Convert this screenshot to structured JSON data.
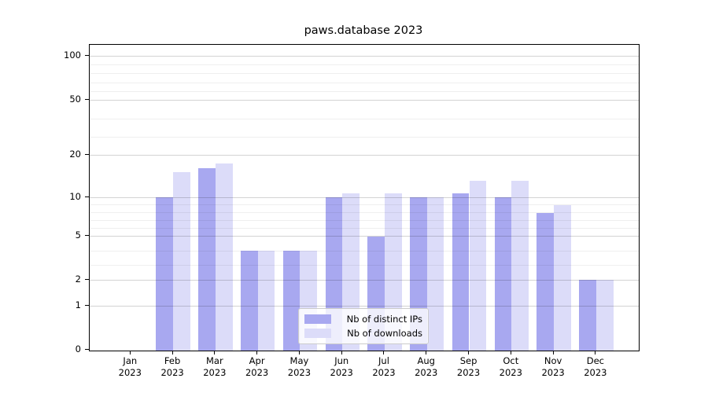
{
  "title": "paws.database 2023",
  "colors": {
    "distinct_ips_bar": "#a8a8f0",
    "downloads_bar": "#dcdcf9",
    "major_gridline": "#d3d3d3",
    "minor_gridline": "#efefef",
    "axis_spine": "#000000",
    "text": "#000000",
    "legend_border": "#cccccc"
  },
  "chart_data": {
    "type": "bar",
    "title": "paws.database 2023",
    "x_categories": [
      "Jan 2023",
      "Feb 2023",
      "Mar 2023",
      "Apr 2023",
      "May 2023",
      "Jun 2023",
      "Jul 2023",
      "Aug 2023",
      "Sep 2023",
      "Oct 2023",
      "Nov 2023",
      "Dec 2023"
    ],
    "series": [
      {
        "name": "Nb of distinct IPs",
        "color": "#a8a8f0",
        "values": [
          0,
          10,
          17,
          4,
          4,
          10,
          5,
          10,
          11,
          10,
          8,
          2
        ]
      },
      {
        "name": "Nb of downloads",
        "color": "#dcdcf9",
        "values": [
          0,
          16,
          18,
          4,
          4,
          11,
          11,
          10,
          14,
          14,
          9,
          2
        ]
      }
    ],
    "xlabel": "",
    "ylabel": "",
    "y_axis": {
      "scale": "log-like",
      "tick_labels": [
        "0",
        "1",
        "2",
        "5",
        "10",
        "20",
        "50",
        "100"
      ],
      "tick_values": [
        0,
        1,
        2,
        5,
        10,
        20,
        50,
        100
      ],
      "minor_tick_values": [
        3,
        4,
        6,
        7,
        8,
        9,
        30,
        40,
        60,
        70,
        80,
        90
      ],
      "range": [
        0,
        100
      ]
    },
    "grid": "horizontal major and minor gridlines",
    "legend_position": "lower center"
  }
}
